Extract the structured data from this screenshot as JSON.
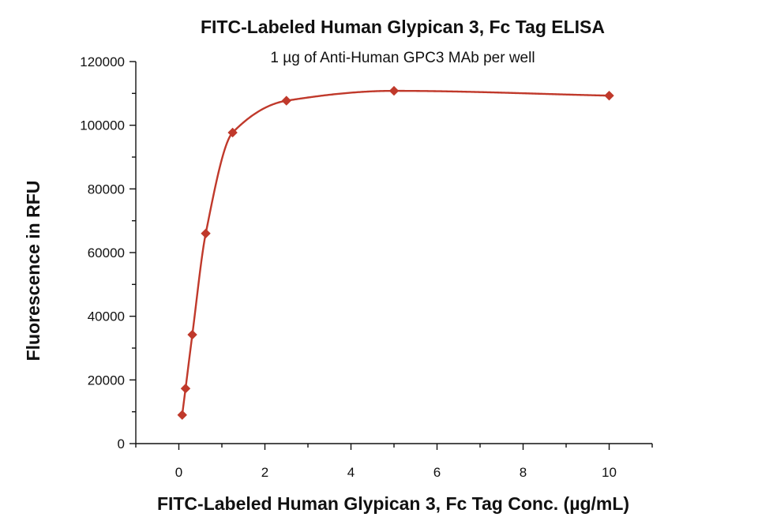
{
  "colors": {
    "series": "#c0392b",
    "axis": "#111111"
  },
  "chart_data": {
    "type": "scatter",
    "title": "FITC-Labeled Human Glypican 3, Fc Tag ELISA",
    "subtitle": "1 µg of Anti-Human GPC3 MAb per well",
    "xlabel": "FITC-Labeled Human Glypican 3, Fc Tag Conc. (µg/mL)",
    "ylabel": "Fluorescence in RFU",
    "xlim": [
      -1,
      11
    ],
    "ylim": [
      0,
      120000
    ],
    "x_ticks": [
      0,
      2,
      4,
      6,
      8,
      10
    ],
    "y_ticks": [
      0,
      20000,
      40000,
      60000,
      80000,
      100000,
      120000
    ],
    "grid": false,
    "legend": "none",
    "marker": "diamond",
    "fit": "sigmoidal curve",
    "series": [
      {
        "x": [
          0.078,
          0.156,
          0.313,
          0.625,
          1.25,
          2.5,
          5,
          10
        ],
        "y": [
          9000,
          17300,
          34200,
          66000,
          97700,
          107700,
          110800,
          109300
        ]
      }
    ]
  }
}
